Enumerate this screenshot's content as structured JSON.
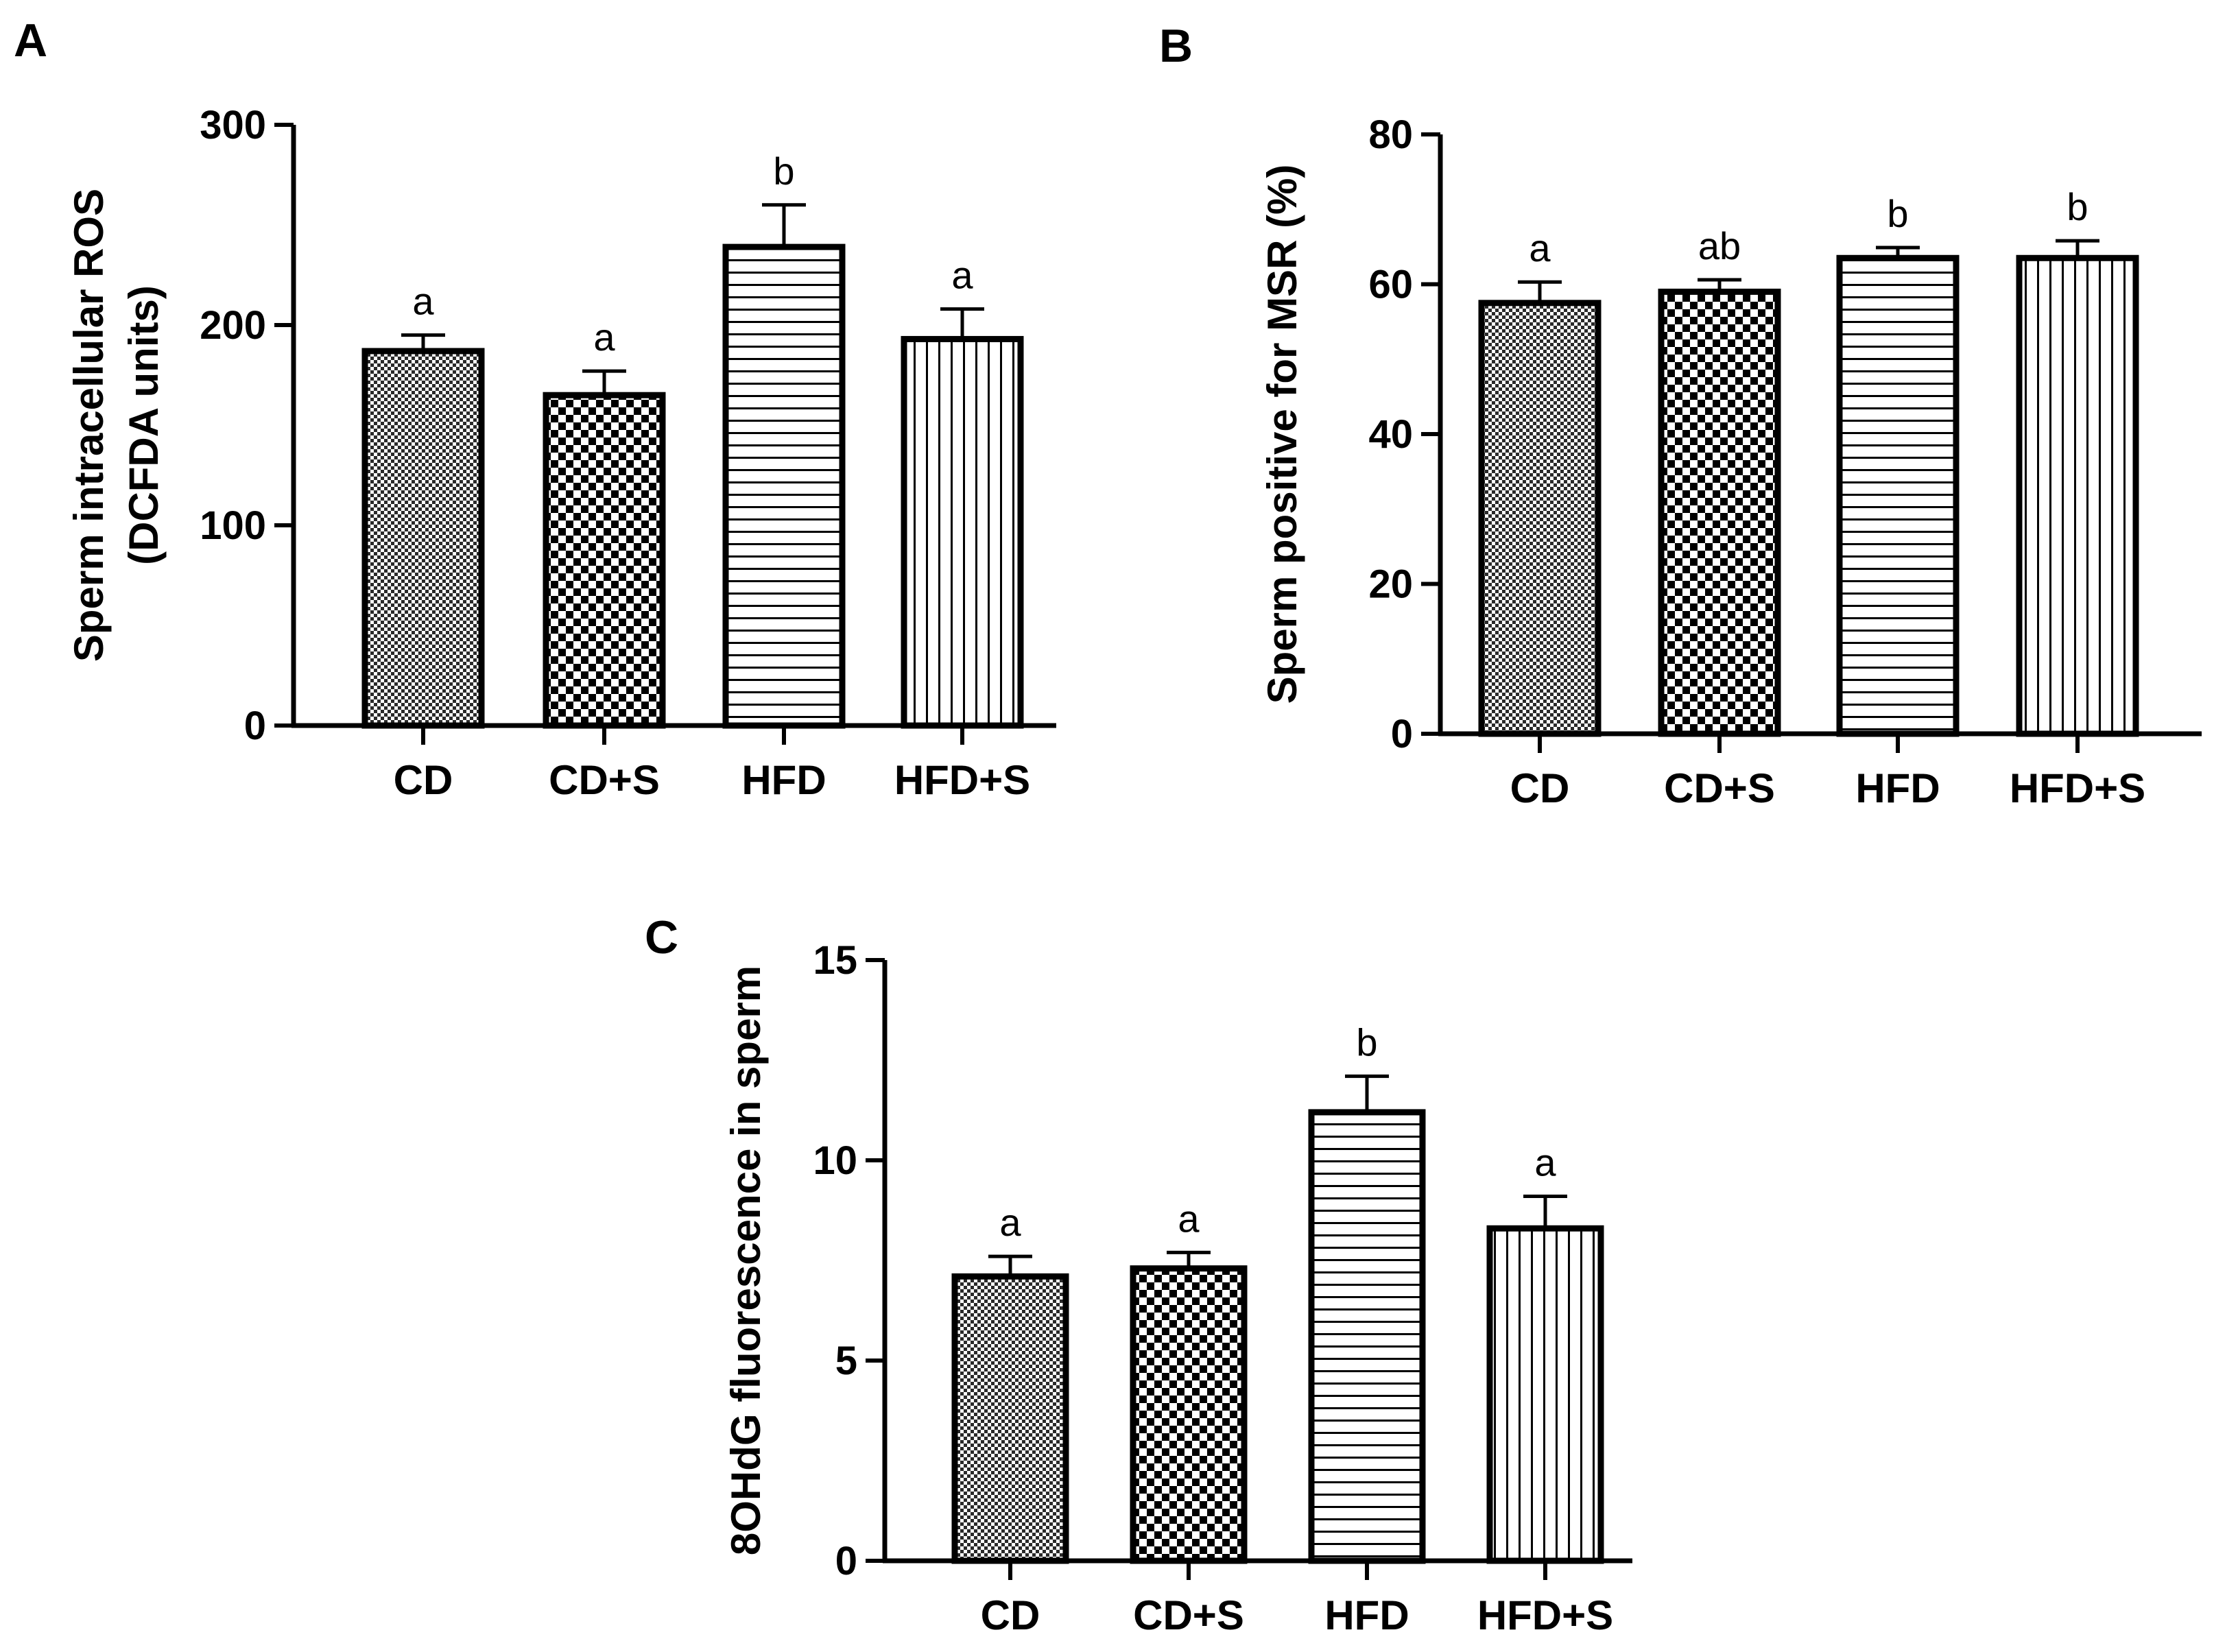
{
  "figure": {
    "panels": [
      "A",
      "B",
      "C"
    ]
  },
  "chart_data": [
    {
      "panel": "A",
      "type": "bar",
      "title": "",
      "ylabel_lines": [
        "Sperm intracellular ROS",
        "(DCFDA units)"
      ],
      "xlabel": "",
      "categories": [
        "CD",
        "CD+S",
        "HFD",
        "HFD+S"
      ],
      "values": [
        187,
        165,
        239,
        193
      ],
      "errors": [
        8,
        12,
        21,
        15
      ],
      "significance": [
        "a",
        "a",
        "b",
        "a"
      ],
      "patterns": [
        "fine-check",
        "checkerboard",
        "horizontal",
        "vertical"
      ],
      "ylim": [
        0,
        300
      ],
      "yticks": [
        0,
        100,
        200,
        300
      ],
      "grid": false
    },
    {
      "panel": "B",
      "type": "bar",
      "title": "",
      "ylabel_lines": [
        "Sperm positive for MSR (%)"
      ],
      "xlabel": "",
      "categories": [
        "CD",
        "CD+S",
        "HFD",
        "HFD+S"
      ],
      "values": [
        57.5,
        59,
        63.5,
        63.5
      ],
      "errors": [
        2.8,
        1.6,
        1.4,
        2.3
      ],
      "significance": [
        "a",
        "ab",
        "b",
        "b"
      ],
      "patterns": [
        "fine-check",
        "checkerboard",
        "horizontal",
        "vertical"
      ],
      "ylim": [
        0,
        80
      ],
      "yticks": [
        0,
        20,
        40,
        60,
        80
      ],
      "grid": false
    },
    {
      "panel": "C",
      "type": "bar",
      "title": "",
      "ylabel_lines": [
        "8OHdG fluorescence in sperm"
      ],
      "xlabel": "",
      "categories": [
        "CD",
        "CD+S",
        "HFD",
        "HFD+S"
      ],
      "values": [
        7.1,
        7.3,
        11.2,
        8.3
      ],
      "errors": [
        0.5,
        0.4,
        0.9,
        0.8
      ],
      "significance": [
        "a",
        "a",
        "b",
        "a"
      ],
      "patterns": [
        "fine-check",
        "checkerboard",
        "horizontal",
        "vertical"
      ],
      "ylim": [
        0,
        15
      ],
      "yticks": [
        0,
        5,
        10,
        15
      ],
      "grid": false
    }
  ]
}
